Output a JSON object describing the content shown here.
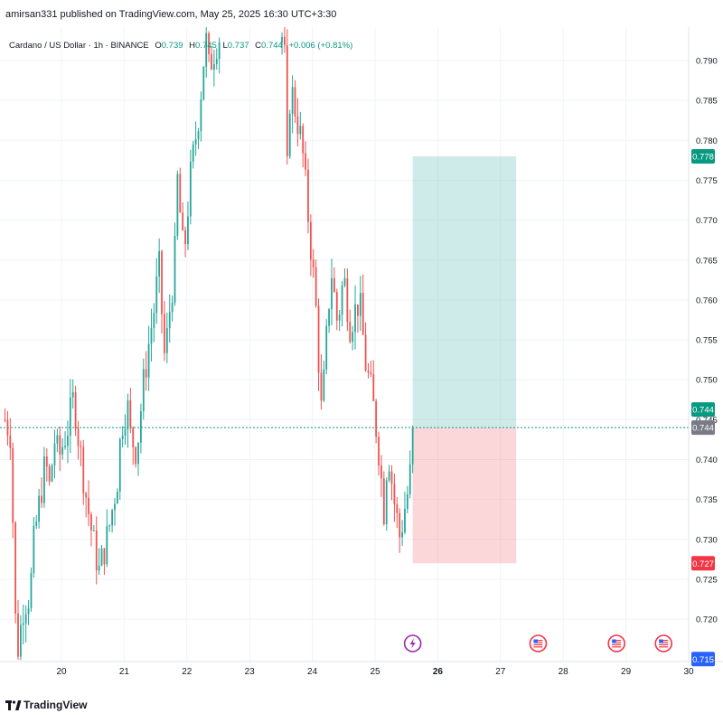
{
  "header": {
    "published_text": "amirsan331 published on TradingView.com, May 25, 2025 16:30 UTC+3:30"
  },
  "legend": {
    "symbol": "Cardano / US Dollar · 1h · BINANCE",
    "o_label": "O",
    "o_value": "0.739",
    "h_label": "H",
    "h_value": "0.745",
    "l_label": "L",
    "l_value": "0.737",
    "c_label": "C",
    "c_value": "0.744",
    "change": "+0.006 (+0.81%)"
  },
  "footer": {
    "brand": "TradingView"
  },
  "colors": {
    "up": "#26a69a",
    "down": "#ef5350",
    "grid": "#f0f3fa",
    "axis_text": "#131722"
  },
  "chart_data": {
    "type": "candlestick",
    "title": "Cardano / US Dollar · 1h · BINANCE",
    "x_ticks": [
      "20",
      "21",
      "22",
      "23",
      "24",
      "25",
      "26",
      "27",
      "28",
      "29",
      "30"
    ],
    "y_ticks": [
      0.79,
      0.785,
      0.78,
      0.775,
      0.77,
      0.765,
      0.76,
      0.755,
      0.75,
      0.745,
      0.74,
      0.735,
      0.73,
      0.725,
      0.72
    ],
    "ylim": [
      0.7135,
      0.7925
    ],
    "x_range_days": [
      19.1,
      30.1
    ],
    "price_labels": [
      {
        "value": 0.778,
        "text": "0.778",
        "color": "#089981"
      },
      {
        "value": 0.744,
        "text": "0.744",
        "color": "#089981"
      },
      {
        "value": 0.7438,
        "text": "0.744",
        "color": "#787b86"
      },
      {
        "value": 0.727,
        "text": "0.727",
        "color": "#f23645"
      },
      {
        "value": 0.715,
        "text": "0.715",
        "color": "#2962ff"
      }
    ],
    "current_price": 0.744,
    "position": {
      "type": "long",
      "entry": 0.744,
      "target": 0.778,
      "stop": 0.727,
      "start_day": 25.6,
      "end_day": 27.25
    },
    "event_markers": [
      {
        "day": 25.6,
        "kind": "lightning"
      },
      {
        "day": 27.6,
        "kind": "us-flag"
      },
      {
        "day": 28.85,
        "kind": "us-flag"
      },
      {
        "day": 29.6,
        "kind": "us-flag"
      }
    ],
    "anchors": [
      [
        19.1,
        0.745
      ],
      [
        19.2,
        0.743
      ],
      [
        19.25,
        0.722
      ],
      [
        19.3,
        0.716
      ],
      [
        19.4,
        0.722
      ],
      [
        19.5,
        0.723
      ],
      [
        19.55,
        0.729
      ],
      [
        19.6,
        0.732
      ],
      [
        19.75,
        0.74
      ],
      [
        19.8,
        0.736
      ],
      [
        19.9,
        0.743
      ],
      [
        19.95,
        0.74
      ],
      [
        20.1,
        0.744
      ],
      [
        20.2,
        0.748
      ],
      [
        20.25,
        0.744
      ],
      [
        20.3,
        0.741
      ],
      [
        20.4,
        0.735
      ],
      [
        20.5,
        0.73
      ],
      [
        20.6,
        0.726
      ],
      [
        20.75,
        0.731
      ],
      [
        20.9,
        0.738
      ],
      [
        20.95,
        0.744
      ],
      [
        21.05,
        0.747
      ],
      [
        21.1,
        0.743
      ],
      [
        21.2,
        0.741
      ],
      [
        21.3,
        0.749
      ],
      [
        21.4,
        0.755
      ],
      [
        21.5,
        0.76
      ],
      [
        21.55,
        0.765
      ],
      [
        21.65,
        0.752
      ],
      [
        21.7,
        0.757
      ],
      [
        21.8,
        0.764
      ],
      [
        21.85,
        0.775
      ],
      [
        21.95,
        0.765
      ],
      [
        22.05,
        0.775
      ],
      [
        22.15,
        0.781
      ],
      [
        22.2,
        0.784
      ],
      [
        22.3,
        0.793
      ],
      [
        22.35,
        0.789
      ],
      [
        22.5,
        0.793
      ],
      [
        23.55,
        0.793
      ],
      [
        23.6,
        0.776
      ],
      [
        23.65,
        0.787
      ],
      [
        23.8,
        0.781
      ],
      [
        23.85,
        0.778
      ],
      [
        23.95,
        0.769
      ],
      [
        24.05,
        0.76
      ],
      [
        24.15,
        0.745
      ],
      [
        24.2,
        0.752
      ],
      [
        24.3,
        0.764
      ],
      [
        24.4,
        0.757
      ],
      [
        24.5,
        0.763
      ],
      [
        24.6,
        0.757
      ],
      [
        24.75,
        0.76
      ],
      [
        24.85,
        0.752
      ],
      [
        24.95,
        0.748
      ],
      [
        25.05,
        0.742
      ],
      [
        25.15,
        0.733
      ],
      [
        25.2,
        0.742
      ],
      [
        25.3,
        0.735
      ],
      [
        25.4,
        0.73
      ],
      [
        25.45,
        0.733
      ],
      [
        25.55,
        0.737
      ],
      [
        25.6,
        0.744
      ]
    ]
  }
}
